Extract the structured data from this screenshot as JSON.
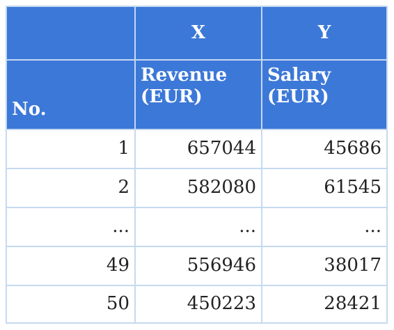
{
  "table": {
    "header_top": {
      "col1": "",
      "col2": "X",
      "col3": "Y"
    },
    "header_names": {
      "col1": "No.",
      "col2_line1": "Revenue",
      "col2_line2": "(EUR)",
      "col3_line1": "Salary",
      "col3_line2": "(EUR)"
    },
    "rows": [
      {
        "no": "1",
        "revenue": "657044",
        "salary": "45686"
      },
      {
        "no": "2",
        "revenue": "582080",
        "salary": "61545"
      },
      {
        "no": "...",
        "revenue": "...",
        "salary": "..."
      },
      {
        "no": "49",
        "revenue": "556946",
        "salary": "38017"
      },
      {
        "no": "50",
        "revenue": "450223",
        "salary": "28421"
      }
    ]
  },
  "colors": {
    "header_bg": "#3c78d8",
    "grid": "#c5d9f1",
    "header_text": "#ffffff",
    "body_text": "#222222"
  }
}
